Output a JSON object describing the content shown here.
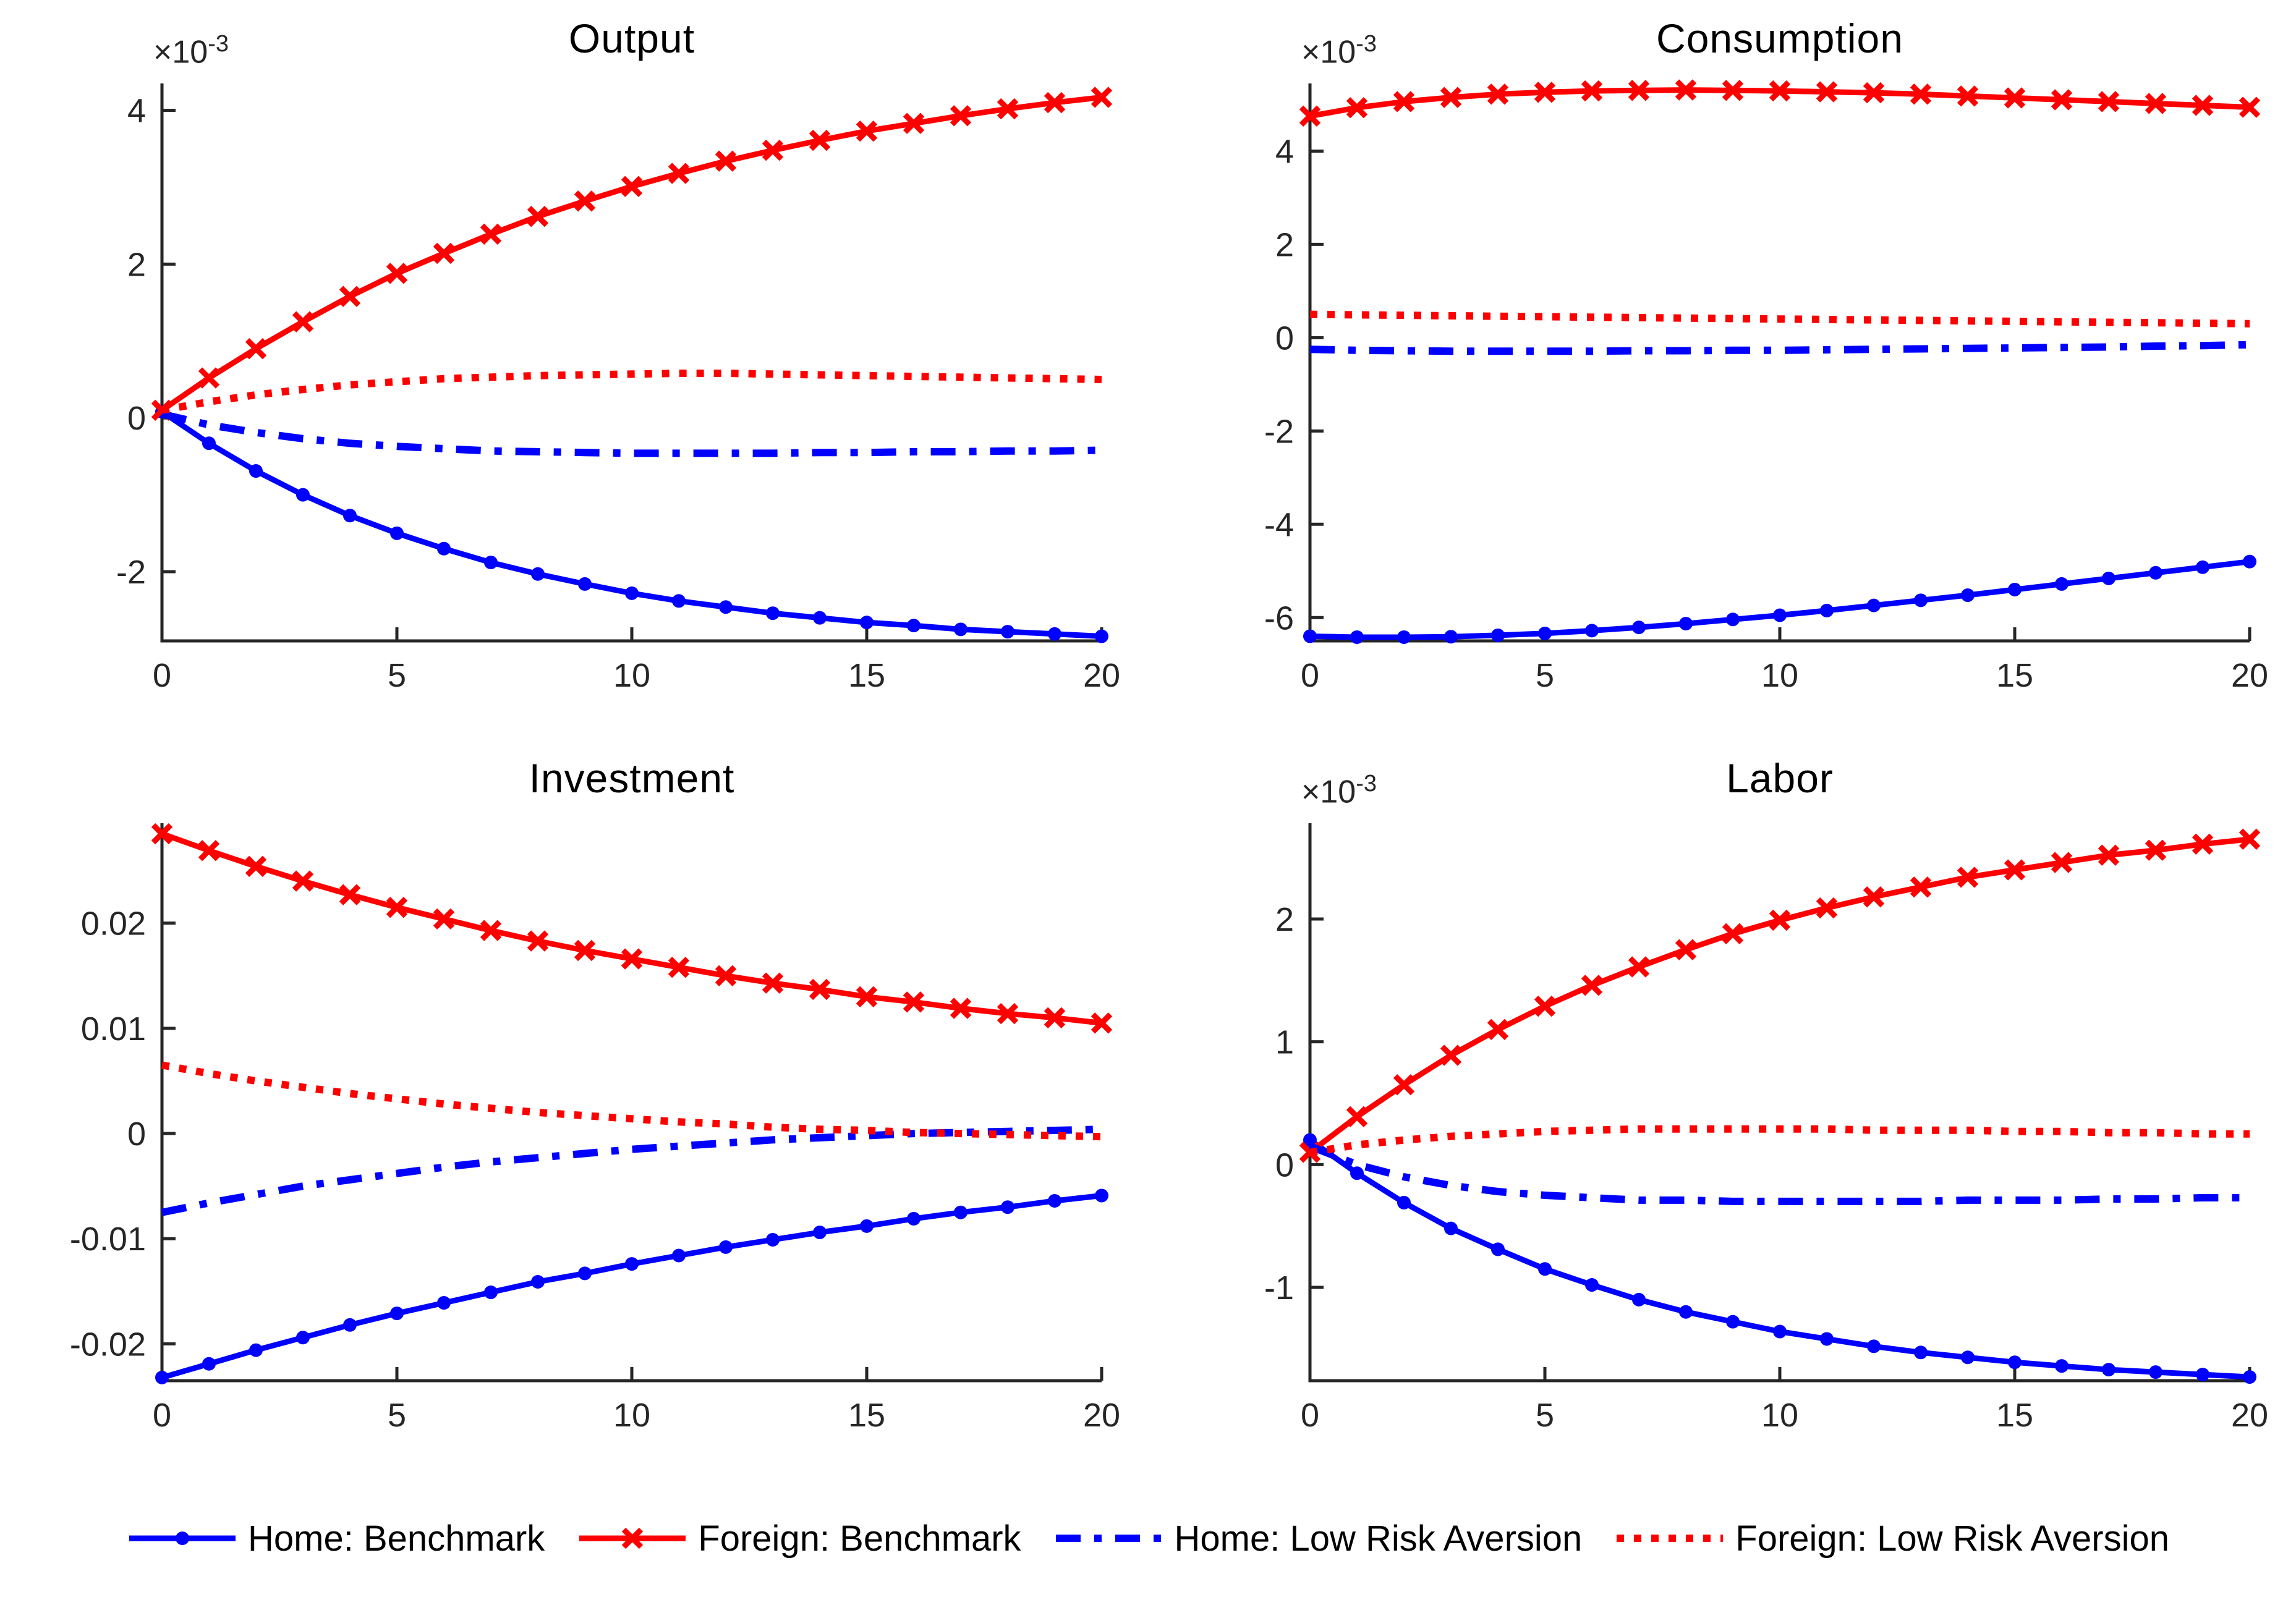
{
  "colors": {
    "home": "#0000ff",
    "foreign": "#ff0000",
    "axis": "#262626",
    "title": "#000000",
    "background": "#ffffff"
  },
  "legend": {
    "items": [
      {
        "label": "Home: Benchmark",
        "color": "#0000ff",
        "line": "solid",
        "marker": "circle"
      },
      {
        "label": "Foreign: Benchmark",
        "color": "#ff0000",
        "line": "solid",
        "marker": "x"
      },
      {
        "label": "Home: Low Risk Aversion",
        "color": "#0000ff",
        "line": "dashdot",
        "marker": "none"
      },
      {
        "label": "Foreign: Low Risk Aversion",
        "color": "#ff0000",
        "line": "dotted",
        "marker": "none"
      }
    ]
  },
  "chart_data": [
    {
      "type": "line",
      "title": "Output",
      "y_exponent": {
        "base": "×10",
        "sup": "-3"
      },
      "values_scale": "1e-3",
      "xlim": [
        0,
        20
      ],
      "ylim": [
        -2.9,
        4.35
      ],
      "x": [
        0,
        1,
        2,
        3,
        4,
        5,
        6,
        7,
        8,
        9,
        10,
        11,
        12,
        13,
        14,
        15,
        16,
        17,
        18,
        19,
        20
      ],
      "xticks": [
        0,
        5,
        10,
        15,
        20
      ],
      "xtick_labels": [
        "0",
        "5",
        "10",
        "15",
        "20"
      ],
      "yticks": [
        -2,
        0,
        2,
        4
      ],
      "ytick_labels": [
        "-2",
        "0",
        "2",
        "4"
      ],
      "series": [
        {
          "name": "Home: Benchmark",
          "color": "#0000ff",
          "line": "solid",
          "marker": "circle",
          "values": [
            0.08,
            -0.33,
            -0.69,
            -1.0,
            -1.27,
            -1.5,
            -1.7,
            -1.88,
            -2.03,
            -2.16,
            -2.28,
            -2.38,
            -2.46,
            -2.54,
            -2.6,
            -2.66,
            -2.7,
            -2.75,
            -2.78,
            -2.81,
            -2.84
          ]
        },
        {
          "name": "Foreign: Benchmark",
          "color": "#ff0000",
          "line": "solid",
          "marker": "x",
          "values": [
            0.1,
            0.52,
            0.9,
            1.25,
            1.58,
            1.88,
            2.14,
            2.39,
            2.62,
            2.82,
            3.01,
            3.18,
            3.34,
            3.48,
            3.61,
            3.73,
            3.83,
            3.93,
            4.02,
            4.1,
            4.17
          ]
        },
        {
          "name": "Home: Low Risk Aversion",
          "color": "#0000ff",
          "line": "dashdot",
          "marker": "none",
          "values": [
            0.05,
            -0.09,
            -0.19,
            -0.27,
            -0.33,
            -0.37,
            -0.4,
            -0.43,
            -0.44,
            -0.45,
            -0.46,
            -0.46,
            -0.46,
            -0.46,
            -0.45,
            -0.45,
            -0.44,
            -0.44,
            -0.43,
            -0.43,
            -0.42
          ]
        },
        {
          "name": "Foreign: Low Risk Aversion",
          "color": "#ff0000",
          "line": "dotted",
          "marker": "none",
          "values": [
            0.1,
            0.21,
            0.3,
            0.37,
            0.43,
            0.47,
            0.51,
            0.53,
            0.55,
            0.56,
            0.57,
            0.58,
            0.58,
            0.57,
            0.56,
            0.55,
            0.54,
            0.53,
            0.52,
            0.51,
            0.5
          ]
        }
      ]
    },
    {
      "type": "line",
      "title": "Consumption",
      "y_exponent": {
        "base": "×10",
        "sup": "-3"
      },
      "values_scale": "1e-3",
      "xlim": [
        0,
        20
      ],
      "ylim": [
        -6.5,
        5.45
      ],
      "x": [
        0,
        1,
        2,
        3,
        4,
        5,
        6,
        7,
        8,
        9,
        10,
        11,
        12,
        13,
        14,
        15,
        16,
        17,
        18,
        19,
        20
      ],
      "xticks": [
        0,
        5,
        10,
        15,
        20
      ],
      "xtick_labels": [
        "0",
        "5",
        "10",
        "15",
        "20"
      ],
      "yticks": [
        -6,
        -4,
        -2,
        0,
        2,
        4
      ],
      "ytick_labels": [
        "-6",
        "-4",
        "-2",
        "0",
        "2",
        "4"
      ],
      "series": [
        {
          "name": "Home: Benchmark",
          "color": "#0000ff",
          "line": "solid",
          "marker": "circle",
          "values": [
            -6.4,
            -6.42,
            -6.42,
            -6.41,
            -6.38,
            -6.34,
            -6.28,
            -6.21,
            -6.13,
            -6.04,
            -5.95,
            -5.85,
            -5.74,
            -5.63,
            -5.52,
            -5.4,
            -5.28,
            -5.16,
            -5.04,
            -4.92,
            -4.8
          ]
        },
        {
          "name": "Foreign: Benchmark",
          "color": "#ff0000",
          "line": "solid",
          "marker": "x",
          "values": [
            4.75,
            4.93,
            5.06,
            5.15,
            5.22,
            5.26,
            5.29,
            5.3,
            5.31,
            5.3,
            5.29,
            5.27,
            5.25,
            5.22,
            5.18,
            5.14,
            5.1,
            5.06,
            5.02,
            4.98,
            4.94
          ]
        },
        {
          "name": "Home: Low Risk Aversion",
          "color": "#0000ff",
          "line": "dashdot",
          "marker": "none",
          "values": [
            -0.25,
            -0.27,
            -0.28,
            -0.29,
            -0.29,
            -0.29,
            -0.29,
            -0.28,
            -0.28,
            -0.27,
            -0.27,
            -0.26,
            -0.25,
            -0.24,
            -0.23,
            -0.22,
            -0.21,
            -0.2,
            -0.18,
            -0.17,
            -0.15
          ]
        },
        {
          "name": "Foreign: Low Risk Aversion",
          "color": "#ff0000",
          "line": "dotted",
          "marker": "none",
          "values": [
            0.5,
            0.49,
            0.48,
            0.47,
            0.46,
            0.45,
            0.44,
            0.43,
            0.42,
            0.41,
            0.4,
            0.39,
            0.38,
            0.37,
            0.36,
            0.35,
            0.34,
            0.33,
            0.32,
            0.31,
            0.3
          ]
        }
      ]
    },
    {
      "type": "line",
      "title": "Investment",
      "values_scale": "1",
      "xlim": [
        0,
        20
      ],
      "ylim": [
        -0.0235,
        0.0295
      ],
      "x": [
        0,
        1,
        2,
        3,
        4,
        5,
        6,
        7,
        8,
        9,
        10,
        11,
        12,
        13,
        14,
        15,
        16,
        17,
        18,
        19,
        20
      ],
      "xticks": [
        0,
        5,
        10,
        15,
        20
      ],
      "xtick_labels": [
        "0",
        "5",
        "10",
        "15",
        "20"
      ],
      "yticks": [
        -0.02,
        -0.01,
        0,
        0.01,
        0.02
      ],
      "ytick_labels": [
        "-0.02",
        "-0.01",
        "0",
        "0.01",
        "0.02"
      ],
      "series": [
        {
          "name": "Home: Benchmark",
          "color": "#0000ff",
          "line": "solid",
          "marker": "circle",
          "values": [
            -0.0232,
            -0.0219,
            -0.0206,
            -0.0194,
            -0.0182,
            -0.0171,
            -0.0161,
            -0.0151,
            -0.0141,
            -0.0133,
            -0.0124,
            -0.0116,
            -0.0108,
            -0.0101,
            -0.0094,
            -0.0088,
            -0.0081,
            -0.0075,
            -0.007,
            -0.0064,
            -0.0059
          ]
        },
        {
          "name": "Foreign: Benchmark",
          "color": "#ff0000",
          "line": "solid",
          "marker": "x",
          "values": [
            0.0285,
            0.0269,
            0.0254,
            0.024,
            0.0227,
            0.0215,
            0.0204,
            0.0193,
            0.0183,
            0.0174,
            0.0166,
            0.0158,
            0.015,
            0.0143,
            0.0137,
            0.013,
            0.0125,
            0.0119,
            0.0114,
            0.011,
            0.0105
          ]
        },
        {
          "name": "Home: Low Risk Aversion",
          "color": "#0000ff",
          "line": "dashdot",
          "marker": "none",
          "values": [
            -0.0075,
            -0.0066,
            -0.0058,
            -0.005,
            -0.0044,
            -0.0038,
            -0.0032,
            -0.0027,
            -0.0023,
            -0.0019,
            -0.0015,
            -0.0012,
            -0.0009,
            -0.0006,
            -0.0004,
            -0.0002,
            0.0,
            0.0001,
            0.0002,
            0.0003,
            0.0004
          ]
        },
        {
          "name": "Foreign: Low Risk Aversion",
          "color": "#ff0000",
          "line": "dotted",
          "marker": "none",
          "values": [
            0.0065,
            0.0057,
            0.005,
            0.0044,
            0.0038,
            0.0033,
            0.0028,
            0.0024,
            0.002,
            0.0017,
            0.0014,
            0.0011,
            0.0009,
            0.0006,
            0.0004,
            0.0003,
            0.0001,
            0.0,
            -0.0001,
            -0.0002,
            -0.0003
          ]
        }
      ]
    },
    {
      "type": "line",
      "title": "Labor",
      "y_exponent": {
        "base": "×10",
        "sup": "-3"
      },
      "values_scale": "1e-3",
      "xlim": [
        0,
        20
      ],
      "ylim": [
        -1.76,
        2.78
      ],
      "x": [
        0,
        1,
        2,
        3,
        4,
        5,
        6,
        7,
        8,
        9,
        10,
        11,
        12,
        13,
        14,
        15,
        16,
        17,
        18,
        19,
        20
      ],
      "xticks": [
        0,
        5,
        10,
        15,
        20
      ],
      "xtick_labels": [
        "0",
        "5",
        "10",
        "15",
        "20"
      ],
      "yticks": [
        -1,
        0,
        1,
        2
      ],
      "ytick_labels": [
        "-1",
        "0",
        "1",
        "2"
      ],
      "series": [
        {
          "name": "Home: Benchmark",
          "color": "#0000ff",
          "line": "solid",
          "marker": "circle",
          "values": [
            0.2,
            -0.07,
            -0.31,
            -0.52,
            -0.69,
            -0.85,
            -0.98,
            -1.1,
            -1.2,
            -1.28,
            -1.36,
            -1.42,
            -1.48,
            -1.53,
            -1.57,
            -1.61,
            -1.64,
            -1.67,
            -1.69,
            -1.71,
            -1.73
          ]
        },
        {
          "name": "Foreign: Benchmark",
          "color": "#ff0000",
          "line": "solid",
          "marker": "x",
          "values": [
            0.1,
            0.39,
            0.65,
            0.89,
            1.1,
            1.29,
            1.46,
            1.61,
            1.75,
            1.88,
            1.99,
            2.09,
            2.18,
            2.26,
            2.34,
            2.4,
            2.46,
            2.52,
            2.56,
            2.61,
            2.65
          ]
        },
        {
          "name": "Home: Low Risk Aversion",
          "color": "#0000ff",
          "line": "dashdot",
          "marker": "none",
          "values": [
            0.15,
            0.0,
            -0.1,
            -0.17,
            -0.22,
            -0.25,
            -0.27,
            -0.29,
            -0.29,
            -0.3,
            -0.3,
            -0.3,
            -0.3,
            -0.3,
            -0.29,
            -0.29,
            -0.29,
            -0.28,
            -0.28,
            -0.27,
            -0.27
          ]
        },
        {
          "name": "Foreign: Low Risk Aversion",
          "color": "#ff0000",
          "line": "dotted",
          "marker": "none",
          "values": [
            0.1,
            0.16,
            0.2,
            0.23,
            0.25,
            0.27,
            0.28,
            0.29,
            0.29,
            0.29,
            0.29,
            0.29,
            0.28,
            0.28,
            0.28,
            0.27,
            0.27,
            0.26,
            0.26,
            0.25,
            0.25
          ]
        }
      ]
    }
  ]
}
